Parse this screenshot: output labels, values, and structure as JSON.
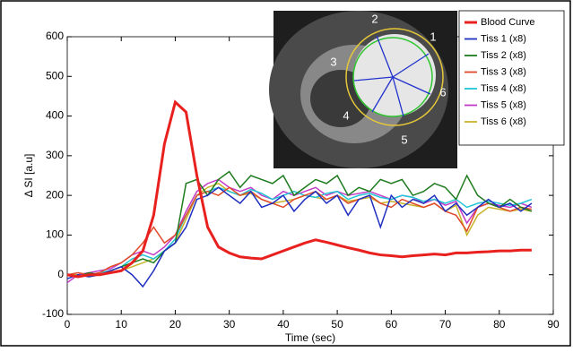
{
  "chart_data": {
    "type": "line",
    "xlabel": "Time (sec)",
    "ylabel": "Δ SI [a.u]",
    "xlim": [
      0,
      90
    ],
    "xticks": [
      0,
      10,
      20,
      30,
      40,
      50,
      60,
      70,
      80,
      90
    ],
    "ylim": [
      -100,
      600
    ],
    "yticks": [
      -100,
      0,
      100,
      200,
      300,
      400,
      500,
      600
    ],
    "legend": "top-right",
    "inset_labels": [
      "1",
      "2",
      "3",
      "4",
      "5",
      "6"
    ],
    "x": [
      0,
      2,
      4,
      6,
      8,
      10,
      12,
      14,
      16,
      18,
      20,
      22,
      24,
      26,
      28,
      30,
      32,
      34,
      36,
      38,
      40,
      42,
      44,
      46,
      48,
      50,
      52,
      54,
      56,
      58,
      60,
      62,
      64,
      66,
      68,
      70,
      72,
      74,
      76,
      78,
      80,
      82,
      84,
      86
    ],
    "series": [
      {
        "name": "Blood Curve",
        "color": "#e8211f",
        "values": [
          0,
          -5,
          0,
          0,
          5,
          10,
          30,
          60,
          150,
          330,
          435,
          410,
          250,
          120,
          70,
          55,
          45,
          42,
          40,
          50,
          60,
          70,
          80,
          88,
          82,
          75,
          68,
          62,
          55,
          50,
          48,
          45,
          48,
          50,
          52,
          50,
          55,
          55,
          57,
          58,
          60,
          60,
          62,
          62
        ]
      },
      {
        "name": "Tiss 1 (x8)",
        "color": "#1f2fc0",
        "values": [
          -10,
          0,
          -5,
          0,
          10,
          20,
          0,
          -30,
          10,
          60,
          80,
          120,
          190,
          200,
          220,
          200,
          180,
          210,
          170,
          180,
          200,
          160,
          190,
          210,
          180,
          200,
          150,
          190,
          200,
          120,
          200,
          170,
          190,
          180,
          200,
          160,
          180,
          150,
          170,
          190,
          170,
          180,
          160,
          180
        ]
      },
      {
        "name": "Tiss 2 (x8)",
        "color": "#1e7b1e",
        "values": [
          0,
          -5,
          5,
          0,
          10,
          20,
          30,
          40,
          30,
          60,
          80,
          230,
          240,
          200,
          240,
          260,
          220,
          250,
          240,
          230,
          250,
          200,
          220,
          240,
          230,
          250,
          200,
          220,
          210,
          240,
          230,
          240,
          200,
          210,
          230,
          220,
          190,
          250,
          200,
          180,
          170,
          190,
          170,
          160
        ]
      },
      {
        "name": "Tiss 3 (x8)",
        "color": "#e04a2a",
        "values": [
          0,
          5,
          0,
          5,
          20,
          30,
          50,
          80,
          120,
          80,
          100,
          150,
          200,
          210,
          200,
          220,
          200,
          210,
          190,
          180,
          170,
          190,
          200,
          210,
          190,
          200,
          180,
          190,
          200,
          180,
          170,
          190,
          180,
          170,
          180,
          160,
          150,
          110,
          170,
          180,
          170,
          160,
          170,
          165
        ]
      },
      {
        "name": "Tiss 4 (x8)",
        "color": "#22c6d6",
        "values": [
          0,
          -5,
          0,
          5,
          10,
          20,
          40,
          50,
          40,
          60,
          90,
          150,
          200,
          210,
          220,
          210,
          200,
          215,
          205,
          190,
          200,
          210,
          200,
          195,
          205,
          210,
          190,
          200,
          205,
          195,
          190,
          200,
          195,
          185,
          190,
          180,
          190,
          170,
          180,
          185,
          180,
          175,
          180,
          190
        ]
      },
      {
        "name": "Tiss 5 (x8)",
        "color": "#c23bc6",
        "values": [
          -20,
          0,
          5,
          10,
          15,
          30,
          50,
          60,
          50,
          70,
          100,
          160,
          210,
          230,
          240,
          220,
          210,
          220,
          200,
          190,
          210,
          200,
          210,
          220,
          200,
          210,
          200,
          205,
          210,
          200,
          190,
          200,
          195,
          180,
          190,
          175,
          185,
          130,
          170,
          180,
          175,
          170,
          180,
          170
        ]
      },
      {
        "name": "Tiss 6 (x8)",
        "color": "#c8b32a",
        "values": [
          0,
          0,
          -5,
          0,
          5,
          10,
          20,
          30,
          40,
          60,
          80,
          140,
          200,
          220,
          230,
          210,
          200,
          205,
          190,
          180,
          185,
          190,
          200,
          195,
          190,
          200,
          185,
          190,
          195,
          180,
          185,
          180,
          175,
          170,
          180,
          160,
          175,
          100,
          150,
          170,
          165,
          160,
          165,
          160
        ]
      }
    ]
  }
}
